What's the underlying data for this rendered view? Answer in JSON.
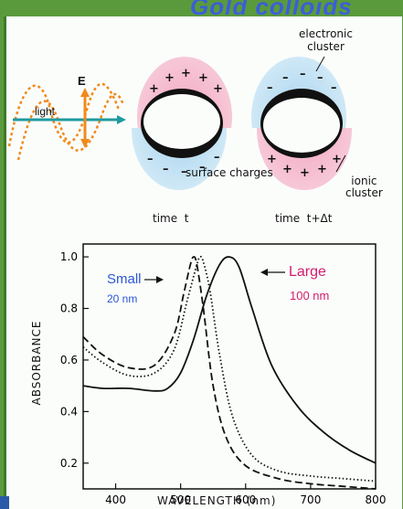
{
  "title": "Gold colloids",
  "diagram": {
    "light_label": "light",
    "field_label": "E",
    "electronic_cluster_label": "electronic\ncluster",
    "surface_charges_label": "surface charges",
    "ionic_cluster_label": "ionic\ncluster",
    "time_left": "time  t",
    "time_right": "time  t+Δt",
    "plus": "+",
    "minus": "–"
  },
  "chart_data": {
    "type": "line",
    "xlabel": "WAVELENGTH (nm)",
    "ylabel": "ABSORBANCE",
    "xlim": [
      350,
      800
    ],
    "ylim": [
      0.1,
      1.05
    ],
    "xticks": [
      400,
      500,
      600,
      700,
      800
    ],
    "yticks": [
      0.2,
      0.4,
      0.6,
      0.8,
      1.0
    ],
    "annotations": {
      "small_name": "Small",
      "small_size": "20 nm",
      "large_name": "Large",
      "large_size": "100 nm"
    },
    "colors": {
      "small": "#2a55d6",
      "large": "#d41c6e"
    },
    "series": [
      {
        "style": "dashed",
        "x": [
          350,
          380,
          420,
          460,
          490,
          505,
          515,
          520,
          525,
          535,
          550,
          570,
          600,
          650,
          700,
          750,
          800
        ],
        "y": [
          0.69,
          0.62,
          0.57,
          0.58,
          0.7,
          0.86,
          0.97,
          1.0,
          0.97,
          0.8,
          0.5,
          0.3,
          0.19,
          0.14,
          0.12,
          0.11,
          0.1
        ]
      },
      {
        "style": "dotted",
        "x": [
          350,
          380,
          420,
          460,
          490,
          510,
          525,
          530,
          535,
          545,
          560,
          580,
          610,
          650,
          700,
          750,
          800
        ],
        "y": [
          0.65,
          0.59,
          0.54,
          0.55,
          0.64,
          0.83,
          0.97,
          1.0,
          0.98,
          0.87,
          0.62,
          0.38,
          0.23,
          0.17,
          0.15,
          0.14,
          0.13
        ]
      },
      {
        "style": "solid",
        "x": [
          350,
          380,
          420,
          460,
          480,
          500,
          520,
          540,
          560,
          575,
          590,
          610,
          640,
          680,
          720,
          760,
          800
        ],
        "y": [
          0.5,
          0.49,
          0.49,
          0.48,
          0.49,
          0.55,
          0.68,
          0.85,
          0.97,
          1.0,
          0.96,
          0.8,
          0.58,
          0.42,
          0.32,
          0.25,
          0.2
        ]
      }
    ]
  }
}
